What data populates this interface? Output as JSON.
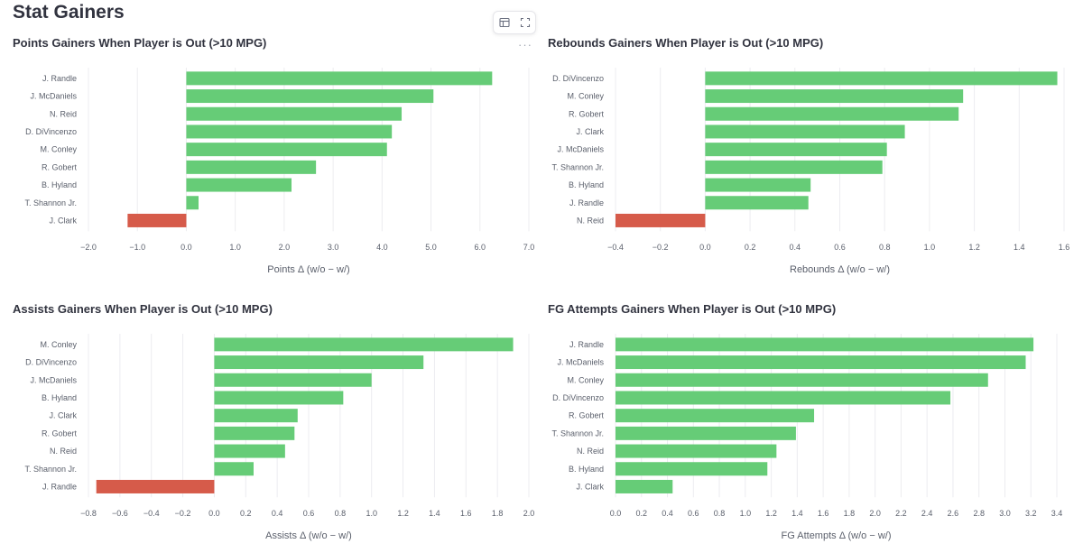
{
  "page": {
    "title": "Stat Gainers"
  },
  "colors": {
    "positive": "#66cc77",
    "negative": "#d65b4a",
    "grid": "#ececf0",
    "text": "#31333f"
  },
  "toolbar": {
    "icons": [
      "table-icon",
      "fullscreen-icon"
    ],
    "more_label": "···"
  },
  "chart_data": [
    {
      "type": "bar",
      "orientation": "horizontal",
      "title": "Points Gainers When Player is Out (>10 MPG)",
      "xlabel": "Points Δ (w/o − w/)",
      "xlim": [
        -2.0,
        7.0
      ],
      "xticks": [
        -2.0,
        -1.0,
        0.0,
        1.0,
        2.0,
        3.0,
        4.0,
        5.0,
        6.0,
        7.0
      ],
      "xtick_labels": [
        "−2.0",
        "−1.0",
        "0.0",
        "1.0",
        "2.0",
        "3.0",
        "4.0",
        "5.0",
        "6.0",
        "7.0"
      ],
      "categories": [
        "J. Randle",
        "J. McDaniels",
        "N. Reid",
        "D. DiVincenzo",
        "M. Conley",
        "R. Gobert",
        "B. Hyland",
        "T. Shannon Jr.",
        "J. Clark"
      ],
      "values": [
        6.25,
        5.05,
        4.4,
        4.2,
        4.1,
        2.65,
        2.15,
        0.25,
        -1.2
      ]
    },
    {
      "type": "bar",
      "orientation": "horizontal",
      "title": "Rebounds Gainers When Player is Out (>10 MPG)",
      "xlabel": "Rebounds Δ (w/o − w/)",
      "xlim": [
        -0.4,
        1.6
      ],
      "xticks": [
        -0.4,
        -0.2,
        0.0,
        0.2,
        0.4,
        0.6,
        0.8,
        1.0,
        1.2,
        1.4,
        1.6
      ],
      "xtick_labels": [
        "−0.4",
        "−0.2",
        "0.0",
        "0.2",
        "0.4",
        "0.6",
        "0.8",
        "1.0",
        "1.2",
        "1.4",
        "1.6"
      ],
      "categories": [
        "D. DiVincenzo",
        "M. Conley",
        "R. Gobert",
        "J. Clark",
        "J. McDaniels",
        "T. Shannon Jr.",
        "B. Hyland",
        "J. Randle",
        "N. Reid"
      ],
      "values": [
        1.57,
        1.15,
        1.13,
        0.89,
        0.81,
        0.79,
        0.47,
        0.46,
        -0.4
      ]
    },
    {
      "type": "bar",
      "orientation": "horizontal",
      "title": "Assists Gainers When Player is Out (>10 MPG)",
      "xlabel": "Assists Δ (w/o − w/)",
      "xlim": [
        -0.8,
        2.0
      ],
      "xticks": [
        -0.8,
        -0.6,
        -0.4,
        -0.2,
        0.0,
        0.2,
        0.4,
        0.6,
        0.8,
        1.0,
        1.2,
        1.4,
        1.6,
        1.8,
        2.0
      ],
      "xtick_labels": [
        "−0.8",
        "−0.6",
        "−0.4",
        "−0.2",
        "0.0",
        "0.2",
        "0.4",
        "0.6",
        "0.8",
        "1.0",
        "1.2",
        "1.4",
        "1.6",
        "1.8",
        "2.0"
      ],
      "categories": [
        "M. Conley",
        "D. DiVincenzo",
        "J. McDaniels",
        "B. Hyland",
        "J. Clark",
        "R. Gobert",
        "N. Reid",
        "T. Shannon Jr.",
        "J. Randle"
      ],
      "values": [
        1.9,
        1.33,
        1.0,
        0.82,
        0.53,
        0.51,
        0.45,
        0.25,
        -0.75
      ]
    },
    {
      "type": "bar",
      "orientation": "horizontal",
      "title": "FG Attempts Gainers When Player is Out (>10 MPG)",
      "xlabel": "FG Attempts Δ (w/o − w/)",
      "xlim": [
        0.0,
        3.4
      ],
      "xticks": [
        0.0,
        0.2,
        0.4,
        0.6,
        0.8,
        1.0,
        1.2,
        1.4,
        1.6,
        1.8,
        2.0,
        2.2,
        2.4,
        2.6,
        2.8,
        3.0,
        3.2,
        3.4
      ],
      "xtick_labels": [
        "0.0",
        "0.2",
        "0.4",
        "0.6",
        "0.8",
        "1.0",
        "1.2",
        "1.4",
        "1.6",
        "1.8",
        "2.0",
        "2.2",
        "2.4",
        "2.6",
        "2.8",
        "3.0",
        "3.2",
        "3.4"
      ],
      "categories": [
        "J. Randle",
        "J. McDaniels",
        "M. Conley",
        "D. DiVincenzo",
        "R. Gobert",
        "T. Shannon Jr.",
        "N. Reid",
        "B. Hyland",
        "J. Clark"
      ],
      "values": [
        3.22,
        3.16,
        2.87,
        2.58,
        1.53,
        1.39,
        1.24,
        1.17,
        0.44
      ]
    }
  ]
}
